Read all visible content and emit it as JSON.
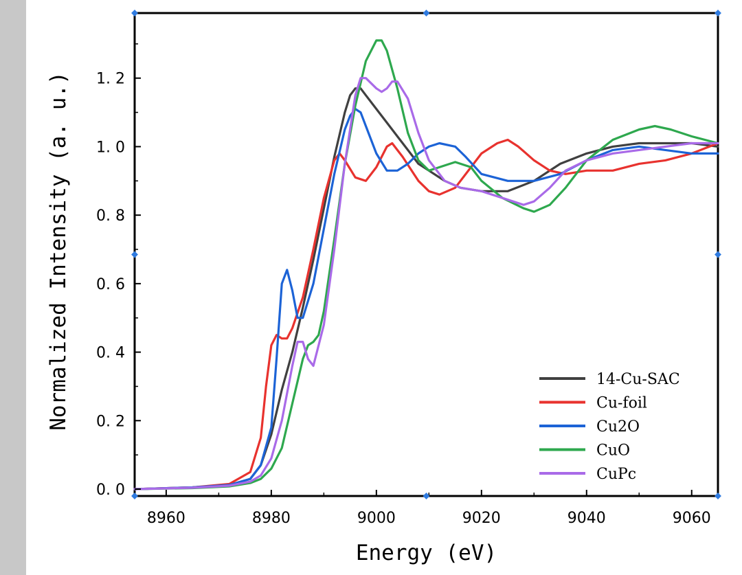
{
  "chart_data": {
    "type": "line",
    "title": "",
    "xlabel": "Energy (eV)",
    "ylabel": "Normalized Intensity (a. u.)",
    "xlim": [
      8954,
      9065
    ],
    "ylim": [
      -0.02,
      1.39
    ],
    "xticks": [
      8960,
      8980,
      9000,
      9020,
      9040,
      9060
    ],
    "yticks": [
      0.0,
      0.2,
      0.4,
      0.6,
      0.8,
      1.0,
      1.2
    ],
    "xtick_labels": [
      "8960",
      "8980",
      "9000",
      "9020",
      "9040",
      "9060"
    ],
    "ytick_labels": [
      "0. 0",
      "0. 2",
      "0. 4",
      "0. 6",
      "0. 8",
      "1. 0",
      "1. 2"
    ],
    "legend_position": "bottom-right",
    "series": [
      {
        "name": "14-Cu-SAC",
        "color": "#404040",
        "x": [
          8954,
          8965,
          8972,
          8976,
          8978,
          8980,
          8982,
          8984,
          8986,
          8988,
          8990,
          8992,
          8994,
          8995,
          8996,
          8997,
          8998,
          9000,
          9002,
          9004,
          9006,
          9008,
          9010,
          9013,
          9016,
          9020,
          9025,
          9030,
          9035,
          9040,
          9045,
          9050,
          9055,
          9060,
          9065
        ],
        "y": [
          0.0,
          0.005,
          0.012,
          0.03,
          0.07,
          0.16,
          0.29,
          0.4,
          0.53,
          0.67,
          0.82,
          0.97,
          1.1,
          1.15,
          1.17,
          1.17,
          1.15,
          1.11,
          1.07,
          1.03,
          0.99,
          0.95,
          0.93,
          0.9,
          0.88,
          0.87,
          0.87,
          0.9,
          0.95,
          0.98,
          1.0,
          1.01,
          1.01,
          1.01,
          1.0
        ]
      },
      {
        "name": "Cu-foil",
        "color": "#e8322e",
        "x": [
          8954,
          8965,
          8972,
          8976,
          8978,
          8979,
          8980,
          8981,
          8982,
          8983,
          8984,
          8986,
          8988,
          8990,
          8992,
          8993,
          8994,
          8996,
          8998,
          9000,
          9002,
          9003,
          9005,
          9008,
          9010,
          9012,
          9015,
          9018,
          9020,
          9023,
          9025,
          9027,
          9030,
          9033,
          9036,
          9040,
          9045,
          9050,
          9055,
          9060,
          9065
        ],
        "y": [
          0.0,
          0.005,
          0.015,
          0.05,
          0.15,
          0.3,
          0.42,
          0.45,
          0.44,
          0.44,
          0.47,
          0.56,
          0.7,
          0.85,
          0.96,
          0.98,
          0.96,
          0.91,
          0.9,
          0.94,
          1.0,
          1.01,
          0.97,
          0.9,
          0.87,
          0.86,
          0.88,
          0.94,
          0.98,
          1.01,
          1.02,
          1.0,
          0.96,
          0.93,
          0.92,
          0.93,
          0.93,
          0.95,
          0.96,
          0.98,
          1.01
        ]
      },
      {
        "name": "Cu2O",
        "color": "#1c63d6",
        "x": [
          8954,
          8965,
          8972,
          8976,
          8978,
          8980,
          8981,
          8982,
          8983,
          8984,
          8985,
          8986,
          8988,
          8990,
          8992,
          8994,
          8995,
          8996,
          8997,
          8998,
          9000,
          9002,
          9004,
          9006,
          9008,
          9010,
          9012,
          9015,
          9017,
          9020,
          9025,
          9030,
          9035,
          9040,
          9045,
          9050,
          9055,
          9060,
          9065
        ],
        "y": [
          0.0,
          0.005,
          0.012,
          0.03,
          0.07,
          0.18,
          0.38,
          0.6,
          0.64,
          0.58,
          0.5,
          0.5,
          0.6,
          0.76,
          0.92,
          1.05,
          1.09,
          1.11,
          1.1,
          1.06,
          0.98,
          0.93,
          0.93,
          0.95,
          0.98,
          1.0,
          1.01,
          1.0,
          0.97,
          0.92,
          0.9,
          0.9,
          0.92,
          0.96,
          0.99,
          1.0,
          0.99,
          0.98,
          0.98
        ]
      },
      {
        "name": "CuO",
        "color": "#2ea84e",
        "x": [
          8954,
          8965,
          8972,
          8976,
          8978,
          8980,
          8982,
          8984,
          8986,
          8987,
          8988,
          8989,
          8990,
          8992,
          8994,
          8996,
          8998,
          9000,
          9001,
          9002,
          9004,
          9006,
          9008,
          9010,
          9012,
          9015,
          9018,
          9020,
          9024,
          9028,
          9030,
          9033,
          9036,
          9040,
          9045,
          9050,
          9053,
          9056,
          9060,
          9065
        ],
        "y": [
          0.0,
          0.003,
          0.008,
          0.018,
          0.03,
          0.06,
          0.12,
          0.25,
          0.38,
          0.42,
          0.43,
          0.45,
          0.52,
          0.73,
          0.95,
          1.12,
          1.25,
          1.31,
          1.31,
          1.28,
          1.17,
          1.04,
          0.96,
          0.93,
          0.94,
          0.955,
          0.94,
          0.9,
          0.85,
          0.82,
          0.81,
          0.83,
          0.88,
          0.96,
          1.02,
          1.05,
          1.06,
          1.05,
          1.03,
          1.01
        ]
      },
      {
        "name": "CuPc",
        "color": "#a96ae8",
        "x": [
          8954,
          8965,
          8972,
          8976,
          8978,
          8980,
          8982,
          8984,
          8985,
          8986,
          8987,
          8988,
          8990,
          8992,
          8994,
          8996,
          8997,
          8998,
          9000,
          9001,
          9002,
          9003,
          9004,
          9006,
          9008,
          9010,
          9013,
          9016,
          9020,
          9024,
          9028,
          9030,
          9033,
          9036,
          9040,
          9045,
          9050,
          9055,
          9060,
          9065
        ],
        "y": [
          0.0,
          0.004,
          0.01,
          0.022,
          0.04,
          0.09,
          0.2,
          0.36,
          0.43,
          0.43,
          0.38,
          0.36,
          0.48,
          0.7,
          0.95,
          1.15,
          1.2,
          1.2,
          1.17,
          1.16,
          1.17,
          1.19,
          1.19,
          1.14,
          1.04,
          0.96,
          0.9,
          0.88,
          0.87,
          0.85,
          0.83,
          0.84,
          0.88,
          0.93,
          0.96,
          0.98,
          0.99,
          1.0,
          1.01,
          1.01
        ]
      }
    ]
  }
}
